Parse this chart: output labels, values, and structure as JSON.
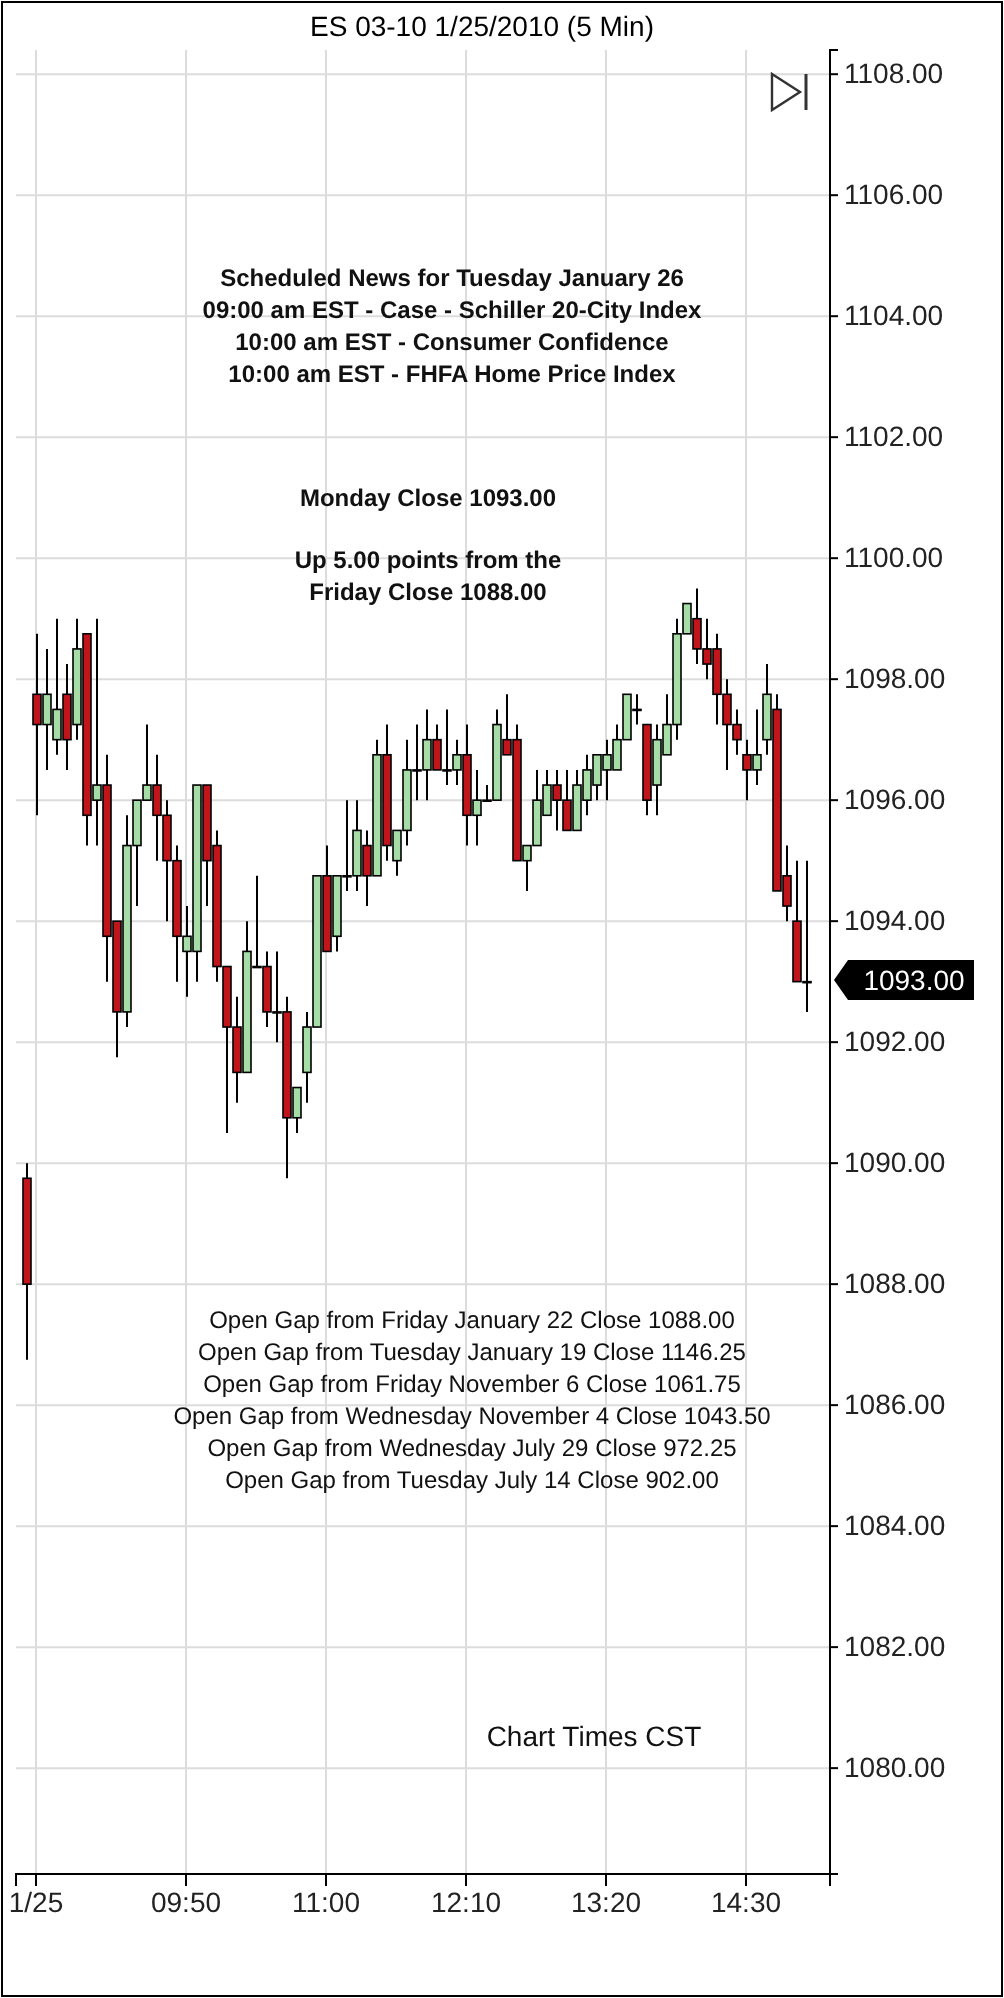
{
  "chart_data": {
    "type": "candlestick",
    "title": "ES 03-10  1/25/2010 (5 Min)",
    "x": [
      8.5,
      8.5833,
      8.6667,
      8.75,
      8.8333,
      8.9167,
      9,
      9.0833,
      9.1667,
      9.25,
      9.3333,
      9.4167,
      9.5,
      9.5833,
      9.6667,
      9.75,
      9.8333,
      9.9167,
      10,
      10.0833,
      10.1667,
      10.25,
      10.3333,
      10.4167,
      10.5,
      10.5833,
      10.6667,
      10.75,
      10.8333,
      10.9167,
      11,
      11.0833,
      11.1667,
      11.25,
      11.3333,
      11.4167,
      11.5,
      11.5833,
      11.6667,
      11.75,
      11.8333,
      11.9167,
      12,
      12.0833,
      12.1667,
      12.25,
      12.3333,
      12.4167,
      12.5,
      12.5833,
      12.6667,
      12.75,
      12.8333,
      12.9167,
      13,
      13.0833,
      13.1667,
      13.25,
      13.3333,
      13.4167,
      13.5,
      13.5833,
      13.6667,
      13.75,
      13.8333,
      13.9167,
      14,
      14.0833,
      14.1667,
      14.25,
      14.3333,
      14.4167,
      14.5,
      14.5833,
      14.6667,
      14.75,
      14.8333,
      14.9167,
      15
    ],
    "ohlc": [
      [
        1089.75,
        1090.0,
        1086.75,
        1088.0
      ],
      [
        1097.75,
        1098.75,
        1095.75,
        1097.25
      ],
      [
        1097.25,
        1098.5,
        1096.5,
        1097.75
      ],
      [
        1097.0,
        1099.0,
        1096.75,
        1097.5
      ],
      [
        1097.75,
        1098.25,
        1096.5,
        1097.0
      ],
      [
        1097.25,
        1099.0,
        1097.0,
        1098.5
      ],
      [
        1098.75,
        1098.75,
        1095.25,
        1095.75
      ],
      [
        1096.0,
        1099.0,
        1095.25,
        1096.25
      ],
      [
        1096.25,
        1096.75,
        1093.0,
        1093.75
      ],
      [
        1094.0,
        1094.0,
        1091.75,
        1092.5
      ],
      [
        1092.5,
        1095.75,
        1092.25,
        1095.25
      ],
      [
        1095.25,
        1096.0,
        1094.25,
        1096.0
      ],
      [
        1096.0,
        1097.25,
        1096.0,
        1096.25
      ],
      [
        1096.25,
        1096.75,
        1095.0,
        1095.75
      ],
      [
        1095.75,
        1096.0,
        1094.0,
        1095.0
      ],
      [
        1095.0,
        1095.25,
        1093.0,
        1093.75
      ],
      [
        1093.5,
        1094.25,
        1092.75,
        1093.75
      ],
      [
        1093.5,
        1096.25,
        1093.0,
        1096.25
      ],
      [
        1096.25,
        1096.25,
        1094.25,
        1095.0
      ],
      [
        1095.25,
        1095.5,
        1093.0,
        1093.25
      ],
      [
        1093.25,
        1093.25,
        1090.5,
        1092.25
      ],
      [
        1092.25,
        1092.75,
        1091.0,
        1091.5
      ],
      [
        1091.5,
        1094.0,
        1091.5,
        1093.5
      ],
      [
        1093.25,
        1094.75,
        1093.25,
        1093.25
      ],
      [
        1093.25,
        1093.5,
        1092.25,
        1092.5
      ],
      [
        1092.5,
        1093.5,
        1092.0,
        1092.5
      ],
      [
        1092.5,
        1092.75,
        1089.75,
        1090.75
      ],
      [
        1090.75,
        1091.25,
        1090.5,
        1091.25
      ],
      [
        1091.5,
        1092.5,
        1091.0,
        1092.25
      ],
      [
        1092.25,
        1094.75,
        1092.25,
        1094.75
      ],
      [
        1094.75,
        1095.25,
        1093.5,
        1093.5
      ],
      [
        1093.75,
        1094.75,
        1093.5,
        1094.75
      ],
      [
        1094.75,
        1096.0,
        1094.5,
        1094.75
      ],
      [
        1094.75,
        1096.0,
        1094.5,
        1095.5
      ],
      [
        1095.25,
        1095.5,
        1094.25,
        1094.75
      ],
      [
        1094.75,
        1097.0,
        1094.75,
        1096.75
      ],
      [
        1096.75,
        1097.25,
        1095.0,
        1095.25
      ],
      [
        1095.0,
        1095.5,
        1094.75,
        1095.5
      ],
      [
        1095.5,
        1097.0,
        1095.25,
        1096.5
      ],
      [
        1096.5,
        1097.25,
        1096.0,
        1096.5
      ],
      [
        1096.5,
        1097.5,
        1096.0,
        1097.0
      ],
      [
        1097.0,
        1097.25,
        1096.5,
        1096.5
      ],
      [
        1096.5,
        1097.5,
        1096.25,
        1096.5
      ],
      [
        1096.5,
        1097.0,
        1096.25,
        1096.75
      ],
      [
        1096.75,
        1097.25,
        1095.25,
        1095.75
      ],
      [
        1095.75,
        1096.5,
        1095.25,
        1096.0
      ],
      [
        1096.0,
        1096.25,
        1096.0,
        1096.0
      ],
      [
        1096.0,
        1097.5,
        1096.0,
        1097.25
      ],
      [
        1097.0,
        1097.75,
        1096.75,
        1096.75
      ],
      [
        1097.0,
        1097.25,
        1095.0,
        1095.0
      ],
      [
        1095.0,
        1095.25,
        1094.5,
        1095.25
      ],
      [
        1095.25,
        1096.5,
        1095.25,
        1096.0
      ],
      [
        1095.75,
        1096.5,
        1095.75,
        1096.25
      ],
      [
        1096.25,
        1096.5,
        1095.5,
        1096.0
      ],
      [
        1096.0,
        1096.5,
        1095.5,
        1095.5
      ],
      [
        1095.5,
        1096.5,
        1095.5,
        1096.25
      ],
      [
        1096.0,
        1096.75,
        1095.75,
        1096.5
      ],
      [
        1096.25,
        1096.75,
        1096.0,
        1096.75
      ],
      [
        1096.5,
        1097.0,
        1096.0,
        1096.75
      ],
      [
        1096.5,
        1097.25,
        1096.5,
        1097.0
      ],
      [
        1097.0,
        1097.75,
        1097.0,
        1097.75
      ],
      [
        1097.5,
        1097.75,
        1097.25,
        1097.5
      ],
      [
        1097.25,
        1097.25,
        1095.75,
        1096.0
      ],
      [
        1096.25,
        1097.25,
        1095.75,
        1097.0
      ],
      [
        1096.75,
        1097.75,
        1096.75,
        1097.25
      ],
      [
        1097.25,
        1099.0,
        1097.0,
        1098.75
      ],
      [
        1098.75,
        1099.25,
        1098.75,
        1099.25
      ],
      [
        1099.0,
        1099.5,
        1098.25,
        1098.5
      ],
      [
        1098.5,
        1099.0,
        1098.0,
        1098.25
      ],
      [
        1098.5,
        1098.75,
        1097.25,
        1097.75
      ],
      [
        1097.75,
        1098.0,
        1096.5,
        1097.25
      ],
      [
        1097.25,
        1097.5,
        1096.75,
        1097.0
      ],
      [
        1096.75,
        1097.0,
        1096.0,
        1096.5
      ],
      [
        1096.5,
        1097.5,
        1096.25,
        1096.75
      ],
      [
        1097.0,
        1098.25,
        1096.75,
        1097.75
      ],
      [
        1097.5,
        1097.75,
        1094.5,
        1094.5
      ],
      [
        1094.75,
        1095.25,
        1094.0,
        1094.25
      ],
      [
        1094.0,
        1095.0,
        1093.0,
        1093.0
      ],
      [
        1093.0,
        1095.0,
        1092.5,
        1093.0
      ]
    ],
    "colors": [
      "#c0161b",
      "#c0161b",
      "#a6dca6",
      "#a6dca6",
      "#c0161b",
      "#a6dca6",
      "#c0161b",
      "#a6dca6",
      "#c0161b",
      "#c0161b",
      "#a6dca6",
      "#a6dca6",
      "#a6dca6",
      "#c0161b",
      "#c0161b",
      "#c0161b",
      "#a6dca6",
      "#a6dca6",
      "#c0161b",
      "#c0161b",
      "#c0161b",
      "#c0161b",
      "#a6dca6",
      "#a6dca6",
      "#c0161b",
      "#a6dca6",
      "#c0161b",
      "#a6dca6",
      "#a6dca6",
      "#a6dca6",
      "#c0161b",
      "#a6dca6",
      "#a6dca6",
      "#a6dca6",
      "#c0161b",
      "#a6dca6",
      "#c0161b",
      "#a6dca6",
      "#a6dca6",
      "#a6dca6",
      "#a6dca6",
      "#c0161b",
      "#a6dca6",
      "#a6dca6",
      "#c0161b",
      "#a6dca6",
      "#a6dca6",
      "#a6dca6",
      "#c0161b",
      "#c0161b",
      "#a6dca6",
      "#a6dca6",
      "#a6dca6",
      "#c0161b",
      "#c0161b",
      "#a6dca6",
      "#a6dca6",
      "#a6dca6",
      "#a6dca6",
      "#a6dca6",
      "#a6dca6",
      "#a6dca6",
      "#c0161b",
      "#a6dca6",
      "#a6dca6",
      "#a6dca6",
      "#a6dca6",
      "#c0161b",
      "#c0161b",
      "#c0161b",
      "#c0161b",
      "#c0161b",
      "#c0161b",
      "#a6dca6",
      "#a6dca6",
      "#c0161b",
      "#c0161b",
      "#c0161b",
      "#a6dca6"
    ],
    "xlim": [
      8.4167,
      15.2
    ],
    "xticks": [
      {
        "value": 8.5833,
        "label": "1/25"
      },
      {
        "value": 9.8333,
        "label": "09:50"
      },
      {
        "value": 11,
        "label": "11:00"
      },
      {
        "value": 12.1667,
        "label": "12:10"
      },
      {
        "value": 13.3333,
        "label": "13:20"
      },
      {
        "value": 14.5,
        "label": "14:30"
      }
    ],
    "ylim": [
      1078.25,
      1108.4
    ],
    "yticks": [
      {
        "value": 1080,
        "label": "1080.00"
      },
      {
        "value": 1082,
        "label": "1082.00"
      },
      {
        "value": 1084,
        "label": "1084.00"
      },
      {
        "value": 1086,
        "label": "1086.00"
      },
      {
        "value": 1088,
        "label": "1088.00"
      },
      {
        "value": 1090,
        "label": "1090.00"
      },
      {
        "value": 1092,
        "label": "1092.00"
      },
      {
        "value": 1094,
        "label": "1094.00"
      },
      {
        "value": 1096,
        "label": "1096.00"
      },
      {
        "value": 1098,
        "label": "1098.00"
      },
      {
        "value": 1100,
        "label": "1100.00"
      },
      {
        "value": 1102,
        "label": "1102.00"
      },
      {
        "value": 1104,
        "label": "1104.00"
      },
      {
        "value": 1106,
        "label": "1106.00"
      },
      {
        "value": 1108,
        "label": "1108.00"
      }
    ],
    "grid": true,
    "annotations": [
      "Scheduled News for Tuesday January 26",
      "09:00 am EST - Case - Schiller 20-City Index",
      "10:00 am EST - Consumer Confidence",
      "10:00 am EST - FHFA Home Price Index",
      "Monday Close 1093.00",
      "Up 5.00 points from the",
      "Friday Close 1088.00",
      "Open Gap from Friday January 22 Close 1088.00",
      "Open Gap from Tuesday January 19 Close 1146.25",
      "Open Gap from Friday November 6 Close 1061.75",
      "Open Gap from Wednesday November 4 Close 1043.50",
      "Open Gap from Wednesday July 29 Close 972.25",
      "Open Gap from Tuesday July 14 Close 902.00",
      "Chart Times CST",
      "1093.00"
    ]
  }
}
